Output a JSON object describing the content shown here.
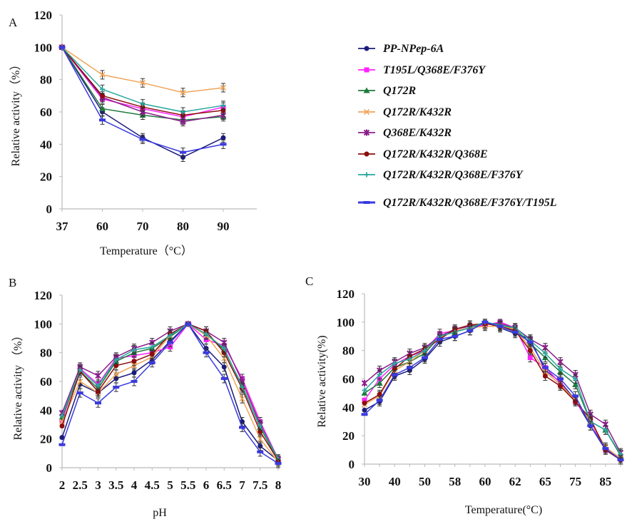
{
  "legend": [
    {
      "name": "PP-NPep-6A",
      "color": "#1c1c7a",
      "marker": "circle"
    },
    {
      "name": "T195L/Q368E/F376Y",
      "color": "#ff22ff",
      "marker": "square"
    },
    {
      "name": "Q172R",
      "color": "#1f7a3c",
      "marker": "triangle"
    },
    {
      "name": "Q172R/K432R",
      "color": "#f0a55a",
      "marker": "x"
    },
    {
      "name": "Q368E/K432R",
      "color": "#8a1e8a",
      "marker": "star"
    },
    {
      "name": "Q172R/K432R/Q368E",
      "color": "#8b0d0d",
      "marker": "circle"
    },
    {
      "name": "Q172R/K432R/Q368E/F376Y",
      "color": "#2aa79e",
      "marker": "plus"
    },
    {
      "name": "Q172R/K432R/Q368E/F376Y/T195L",
      "color": "#3a3ae0",
      "marker": "bar"
    }
  ],
  "chart_data": [
    {
      "panel": "A",
      "type": "line",
      "xlabel": "Temperature（°C）",
      "ylabel": "Relative activity（%）",
      "categories": [
        "37",
        "60",
        "70",
        "80",
        "90"
      ],
      "ylim": [
        0,
        120
      ],
      "yticks": [
        0,
        20,
        40,
        60,
        80,
        100,
        120
      ],
      "grid": false,
      "error_bars": true,
      "series": [
        {
          "name": "PP-NPep-6A",
          "values": [
            100,
            60,
            44,
            32,
            44
          ]
        },
        {
          "name": "T195L/Q368E/F376Y",
          "values": [
            100,
            68,
            62,
            57,
            63
          ]
        },
        {
          "name": "Q172R",
          "values": [
            100,
            62,
            58,
            55,
            57
          ]
        },
        {
          "name": "Q172R/K432R",
          "values": [
            100,
            83,
            78,
            72,
            75
          ]
        },
        {
          "name": "Q368E/K432R",
          "values": [
            100,
            69,
            60,
            54,
            58
          ]
        },
        {
          "name": "Q172R/K432R/Q368E",
          "values": [
            100,
            70,
            63,
            58,
            61
          ]
        },
        {
          "name": "Q172R/K432R/Q368E/F376Y",
          "values": [
            100,
            74,
            65,
            60,
            64
          ]
        },
        {
          "name": "Q172R/K432R/Q368E/F376Y/T195L",
          "values": [
            100,
            55,
            43,
            35,
            40
          ]
        }
      ]
    },
    {
      "panel": "B",
      "type": "line",
      "xlabel": "pH",
      "ylabel": "Relative activity （%）",
      "categories": [
        "2",
        "2.5",
        "3",
        "3.5",
        "4",
        "4.5",
        "5",
        "5.5",
        "6",
        "6.5",
        "7",
        "7.5",
        "8"
      ],
      "ylim": [
        0,
        120
      ],
      "yticks": [
        0,
        20,
        40,
        60,
        80,
        100,
        120
      ],
      "grid": false,
      "error_bars": true,
      "series": [
        {
          "name": "PP-NPep-6A",
          "values": [
            21,
            58,
            52,
            62,
            66,
            75,
            88,
            100,
            83,
            70,
            32,
            15,
            5
          ]
        },
        {
          "name": "T195L/Q368E/F376Y",
          "values": [
            33,
            69,
            58,
            76,
            78,
            80,
            84,
            100,
            89,
            85,
            62,
            32,
            6
          ]
        },
        {
          "name": "Q172R",
          "values": [
            35,
            67,
            55,
            74,
            80,
            83,
            91,
            100,
            93,
            82,
            57,
            28,
            5
          ]
        },
        {
          "name": "Q172R/K432R",
          "values": [
            32,
            60,
            52,
            65,
            71,
            77,
            92,
            100,
            92,
            76,
            48,
            20,
            4
          ]
        },
        {
          "name": "Q368E/K432R",
          "values": [
            38,
            70,
            64,
            77,
            83,
            87,
            95,
            100,
            95,
            87,
            60,
            30,
            6
          ]
        },
        {
          "name": "Q172R/K432R/Q368E",
          "values": [
            29,
            67,
            53,
            71,
            74,
            79,
            93,
            100,
            95,
            80,
            55,
            25,
            5
          ]
        },
        {
          "name": "Q172R/K432R/Q368E/F376Y",
          "values": [
            36,
            68,
            57,
            75,
            82,
            84,
            92,
            100,
            93,
            83,
            56,
            29,
            6
          ]
        },
        {
          "name": "Q172R/K432R/Q368E/F376Y/T195L",
          "values": [
            16,
            52,
            45,
            56,
            60,
            73,
            87,
            100,
            80,
            62,
            28,
            11,
            3
          ]
        }
      ]
    },
    {
      "panel": "C",
      "type": "line",
      "xlabel": "Temperature(°C)",
      "ylabel": "Relative activity(%)",
      "categories": [
        "30",
        "",
        "40",
        "",
        "50",
        "",
        "58",
        "",
        "60",
        "",
        "62",
        "",
        "65",
        "",
        "75",
        "",
        "85",
        ""
      ],
      "ylim": [
        0,
        120
      ],
      "yticks": [
        0,
        20,
        40,
        60,
        80,
        100,
        120
      ],
      "grid": false,
      "error_bars": true,
      "series": [
        {
          "name": "PP-NPep-6A",
          "values": [
            38,
            44,
            62,
            66,
            74,
            86,
            90,
            94,
            100,
            96,
            92,
            88,
            66,
            58,
            45,
            27,
            10,
            3
          ]
        },
        {
          "name": "T195L/Q368E/F376Y",
          "values": [
            45,
            60,
            70,
            76,
            80,
            92,
            94,
            96,
            98,
            100,
            96,
            75,
            68,
            57,
            44,
            30,
            10,
            4
          ]
        },
        {
          "name": "Q172R",
          "values": [
            50,
            57,
            68,
            72,
            78,
            90,
            93,
            96,
            99,
            98,
            95,
            85,
            75,
            65,
            56,
            30,
            24,
            6
          ]
        },
        {
          "name": "Q172R/K432R",
          "values": [
            42,
            48,
            66,
            72,
            80,
            89,
            94,
            96,
            97,
            97,
            95,
            82,
            65,
            56,
            45,
            30,
            12,
            4
          ]
        },
        {
          "name": "Q368E/K432R",
          "values": [
            57,
            66,
            72,
            78,
            82,
            90,
            95,
            97,
            99,
            99,
            96,
            88,
            82,
            72,
            63,
            35,
            28,
            8
          ]
        },
        {
          "name": "Q172R/K432R/Q368E",
          "values": [
            43,
            49,
            67,
            76,
            81,
            88,
            95,
            98,
            99,
            97,
            94,
            80,
            62,
            55,
            44,
            32,
            10,
            3
          ]
        },
        {
          "name": "Q172R/K432R/Q368E/F376Y",
          "values": [
            52,
            63,
            71,
            74,
            80,
            90,
            93,
            96,
            100,
            98,
            96,
            87,
            78,
            67,
            60,
            30,
            24,
            7
          ]
        },
        {
          "name": "Q172R/K432R/Q368E/F376Y/T195L",
          "values": [
            35,
            45,
            63,
            68,
            75,
            88,
            90,
            94,
            100,
            97,
            93,
            86,
            68,
            60,
            48,
            27,
            11,
            3
          ]
        }
      ]
    }
  ]
}
